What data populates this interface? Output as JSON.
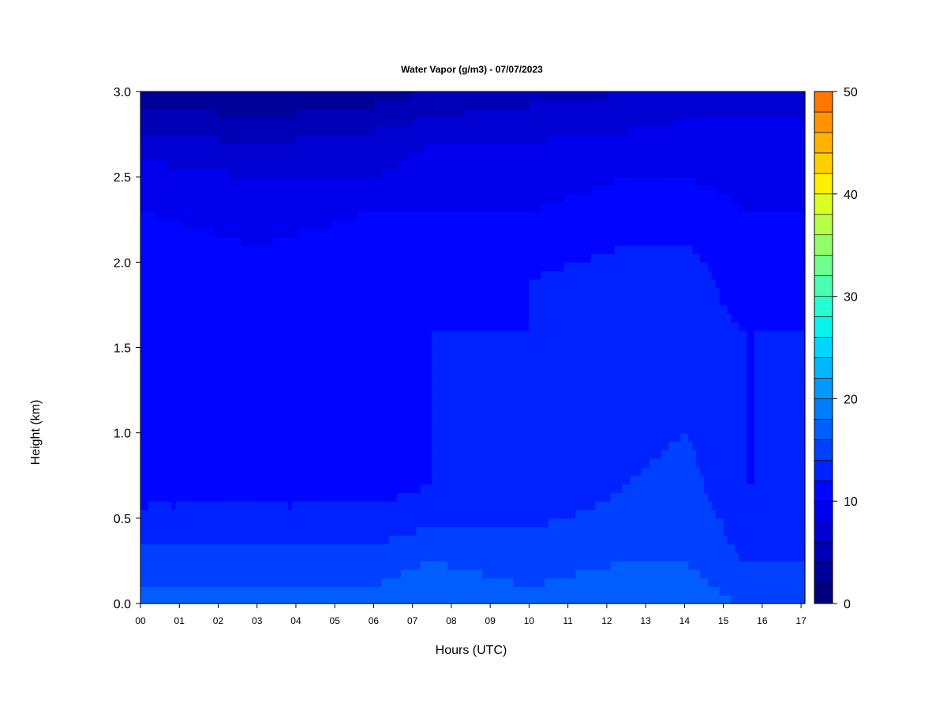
{
  "chart_data": {
    "type": "heatmap",
    "title": "Water Vapor (g/m3) - 07/07/2023",
    "xlabel": "Hours (UTC)",
    "ylabel": "Height (km)",
    "xlim": [
      0,
      17.1
    ],
    "ylim": [
      0,
      3.0
    ],
    "x_ticks": [
      "00",
      "01",
      "02",
      "03",
      "04",
      "05",
      "06",
      "07",
      "08",
      "09",
      "10",
      "11",
      "12",
      "13",
      "14",
      "15",
      "16",
      "17"
    ],
    "y_ticks": [
      "0.0",
      "0.5",
      "1.0",
      "1.5",
      "2.0",
      "2.5",
      "3.0"
    ],
    "colorbar": {
      "min": 0,
      "max": 50,
      "step": 2,
      "ticks": [
        "0",
        "10",
        "20",
        "30",
        "40",
        "50"
      ],
      "colors": [
        "#00007f",
        "#00009a",
        "#0000b6",
        "#0000d2",
        "#0000ed",
        "#0005ff",
        "#0022ff",
        "#0040ff",
        "#005eff",
        "#007cff",
        "#009aff",
        "#00b8ff",
        "#00d6ff",
        "#0af4ef",
        "#26ffd3",
        "#4affb0",
        "#6eff8d",
        "#92ff6a",
        "#b6ff47",
        "#daff24",
        "#fef000",
        "#ffd000",
        "#ffb200",
        "#ff9400",
        "#ff7600"
      ]
    },
    "profile_heights_km": [
      0.0,
      0.1,
      0.25,
      0.45,
      0.7,
      1.0,
      1.3,
      1.6,
      1.9,
      2.1,
      2.3,
      2.5,
      2.7,
      2.85,
      3.0
    ],
    "profiles": [
      {
        "x": 0,
        "values": [
          17,
          16,
          15,
          13,
          11,
          11,
          12,
          12,
          12,
          11,
          10,
          9,
          7,
          5,
          3
        ]
      },
      {
        "x": 3,
        "values": [
          17,
          16,
          15,
          13,
          11,
          11,
          11,
          11,
          11,
          10,
          9,
          8,
          6,
          4,
          2
        ]
      },
      {
        "x": 6,
        "values": [
          17,
          16,
          15,
          13,
          11,
          11,
          11,
          11,
          11,
          11,
          10,
          8,
          7,
          5,
          3
        ]
      },
      {
        "x": 7.5,
        "values": [
          18,
          17,
          16,
          14,
          12,
          12,
          12,
          12,
          11,
          11,
          10,
          9,
          8,
          6,
          4
        ]
      },
      {
        "x": 10,
        "values": [
          17,
          16,
          15,
          14,
          12,
          12,
          12,
          12,
          12,
          11,
          10,
          9,
          8,
          7,
          5
        ]
      },
      {
        "x": 12.5,
        "values": [
          17,
          17,
          16,
          15,
          14,
          13,
          13,
          13,
          13,
          12,
          11,
          10,
          9,
          7,
          6
        ]
      },
      {
        "x": 14,
        "values": [
          17,
          17,
          16,
          16,
          15,
          14,
          13,
          13,
          13,
          12,
          12,
          10,
          9,
          8,
          7
        ]
      },
      {
        "x": 15.5,
        "values": [
          16,
          15,
          14,
          13,
          12,
          12,
          12,
          12,
          11,
          11,
          10,
          9,
          9,
          8,
          7
        ]
      },
      {
        "x": 16.8,
        "values": [
          16,
          15,
          14,
          13,
          12,
          12,
          12,
          12,
          11,
          11,
          10,
          9,
          9,
          8,
          7
        ]
      }
    ]
  }
}
